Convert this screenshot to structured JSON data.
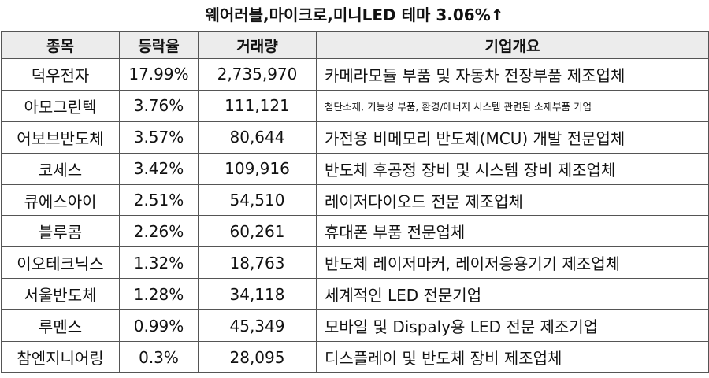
{
  "title": "웨어러블,마이크로,미니LED 테마 3.06%↑",
  "headers": [
    "종목",
    "등락율",
    "거래량",
    "기업개요"
  ],
  "rows": [
    {
      "name": "덕우전자",
      "change": "17.99%",
      "volume": "2,735,970",
      "desc": "카메라모듈 부품 및 자동차 전장부품 제조업체"
    },
    {
      "name": "아모그린텍",
      "change": "3.76%",
      "volume": "111,121",
      "desc": "첨단소재, 기능성 부품, 환경/에너지 시스템 관련된 소재부품 기업"
    },
    {
      "name": "어보브반도체",
      "change": "3.57%",
      "volume": "80,644",
      "desc": "가전용 비메모리 반도체(MCU) 개발 전문업체"
    },
    {
      "name": "코세스",
      "change": "3.42%",
      "volume": "109,916",
      "desc": "반도체 후공정 장비 및 시스템 장비 제조업체"
    },
    {
      "name": "큐에스아이",
      "change": "2.51%",
      "volume": "54,510",
      "desc": "레이저다이오드 전문 제조업체"
    },
    {
      "name": "블루콤",
      "change": "2.26%",
      "volume": "60,261",
      "desc": "휴대폰 부품 전문업체"
    },
    {
      "name": "이오테크닉스",
      "change": "1.32%",
      "volume": "18,763",
      "desc": "반도체 레이저마커, 레이저응용기기 제조업체"
    },
    {
      "name": "서울반도체",
      "change": "1.28%",
      "volume": "34,118",
      "desc": "세계적인 LED 전문기업"
    },
    {
      "name": "루멘스",
      "change": "0.99%",
      "volume": "45,349",
      "desc": "모바일 및 Dispaly용 LED 전문 제조기업"
    },
    {
      "name": "참엔지니어링",
      "change": "0.3%",
      "volume": "28,095",
      "desc": "디스플레이 및 반도체 장비 제조업체"
    }
  ]
}
